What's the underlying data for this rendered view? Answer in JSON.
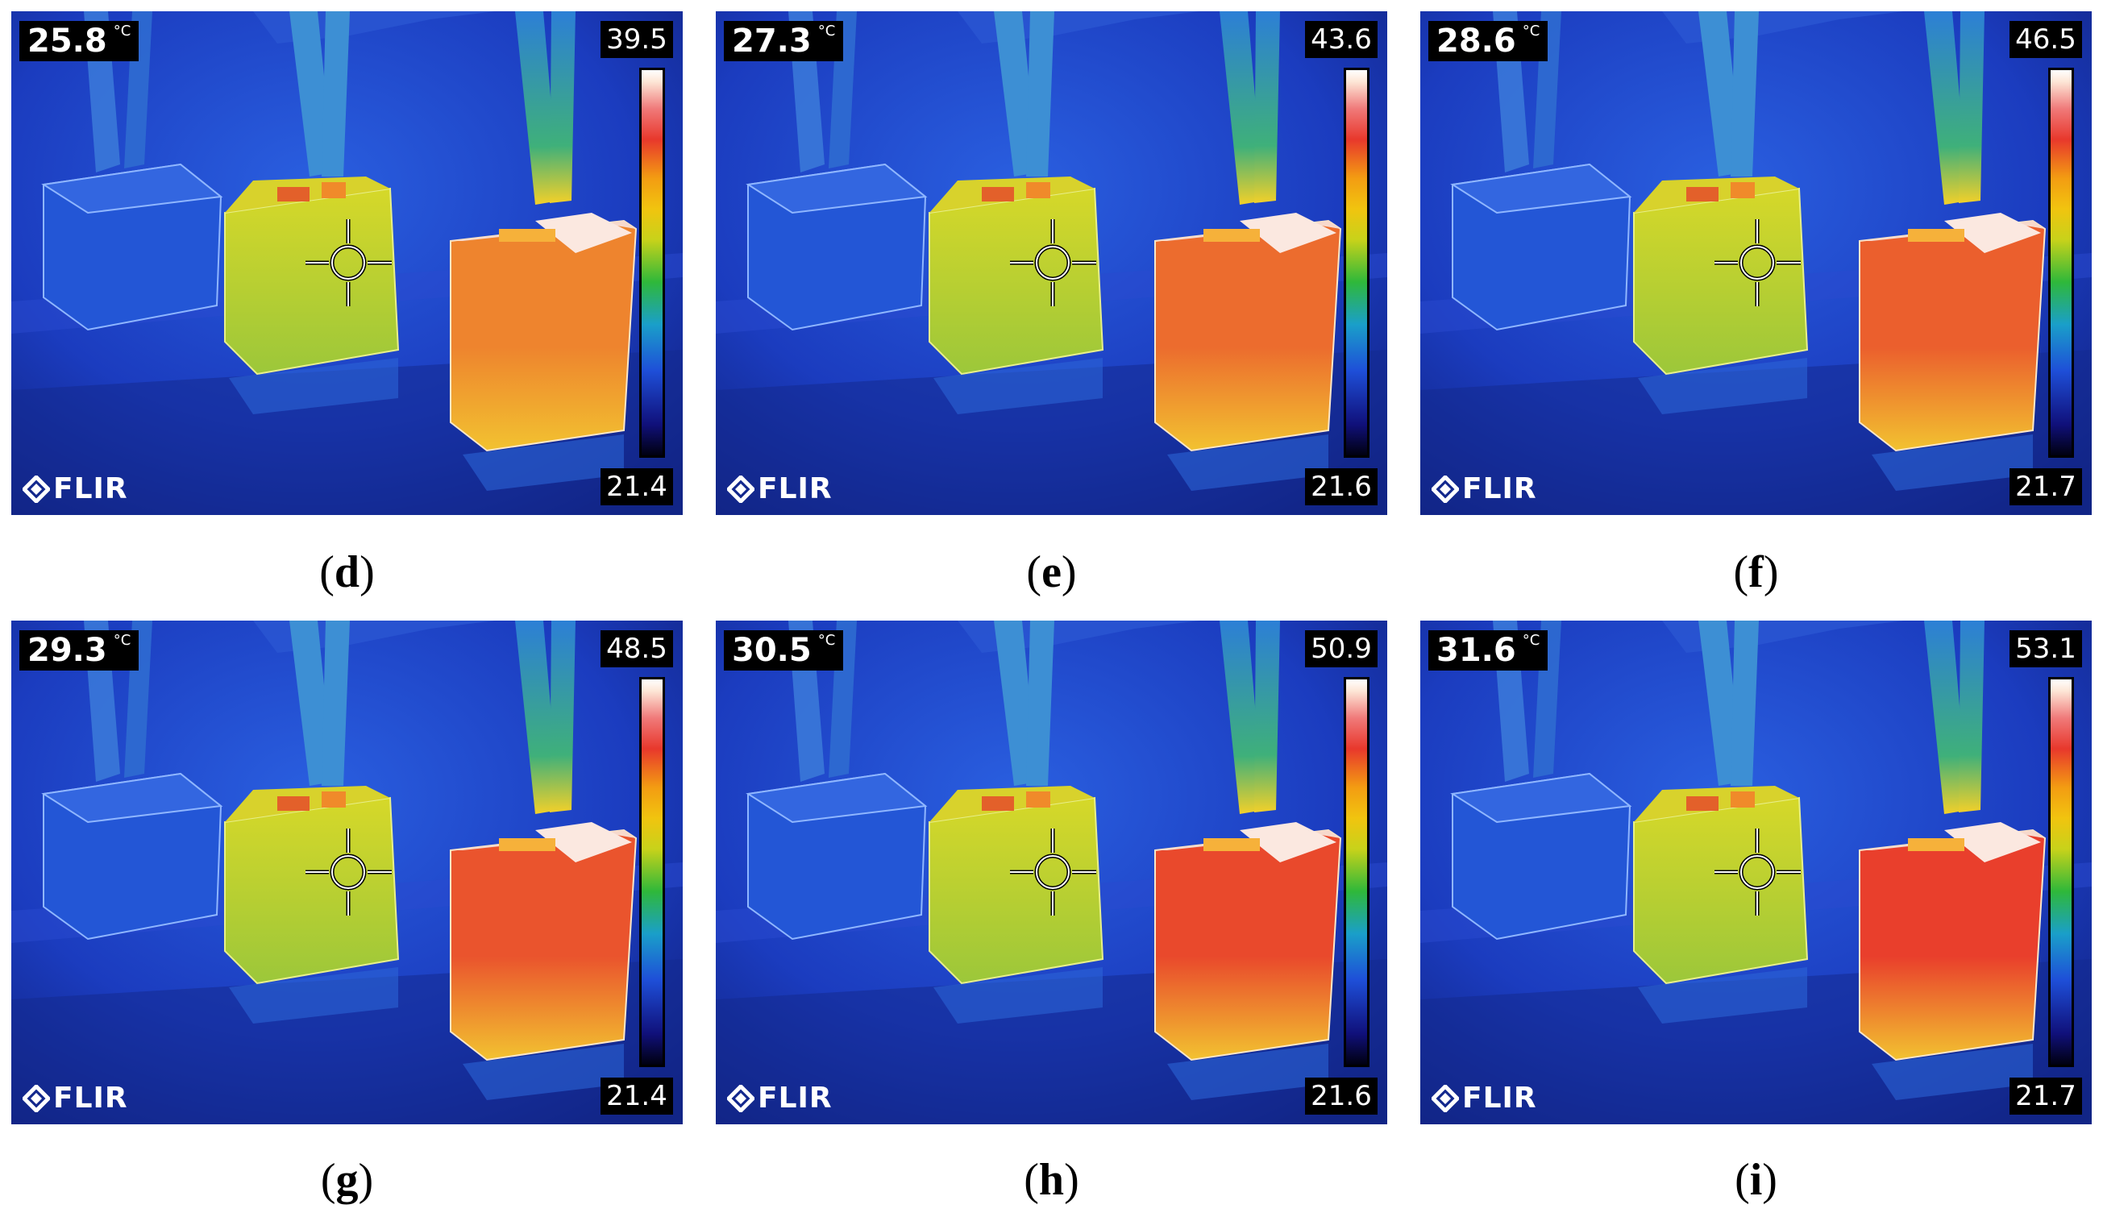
{
  "panels": [
    {
      "id": "d",
      "label": "d",
      "spot_temp": "25.8",
      "unit": "°C",
      "scale_max": "39.5",
      "scale_min": "21.4",
      "brand": "FLIR",
      "hot_level": 0.45
    },
    {
      "id": "e",
      "label": "e",
      "spot_temp": "27.3",
      "unit": "°C",
      "scale_max": "43.6",
      "scale_min": "21.6",
      "brand": "FLIR",
      "hot_level": 0.62
    },
    {
      "id": "f",
      "label": "f",
      "spot_temp": "28.6",
      "unit": "°C",
      "scale_max": "46.5",
      "scale_min": "21.7",
      "brand": "FLIR",
      "hot_level": 0.72
    },
    {
      "id": "g",
      "label": "g",
      "spot_temp": "29.3",
      "unit": "°C",
      "scale_max": "48.5",
      "scale_min": "21.4",
      "brand": "FLIR",
      "hot_level": 0.8
    },
    {
      "id": "h",
      "label": "h",
      "spot_temp": "30.5",
      "unit": "°C",
      "scale_max": "50.9",
      "scale_min": "21.6",
      "brand": "FLIR",
      "hot_level": 0.88
    },
    {
      "id": "i",
      "label": "i",
      "spot_temp": "31.6",
      "unit": "°C",
      "scale_max": "53.1",
      "scale_min": "21.7",
      "brand": "FLIR",
      "hot_level": 0.95
    }
  ],
  "colors": {
    "background_blue": "#1a3fc8",
    "cold_cube": "#2356d6",
    "mid_cube": "#b8d22a",
    "hot_cube_base": "#f2c230",
    "hot_cube_peak": "#e8382c"
  }
}
